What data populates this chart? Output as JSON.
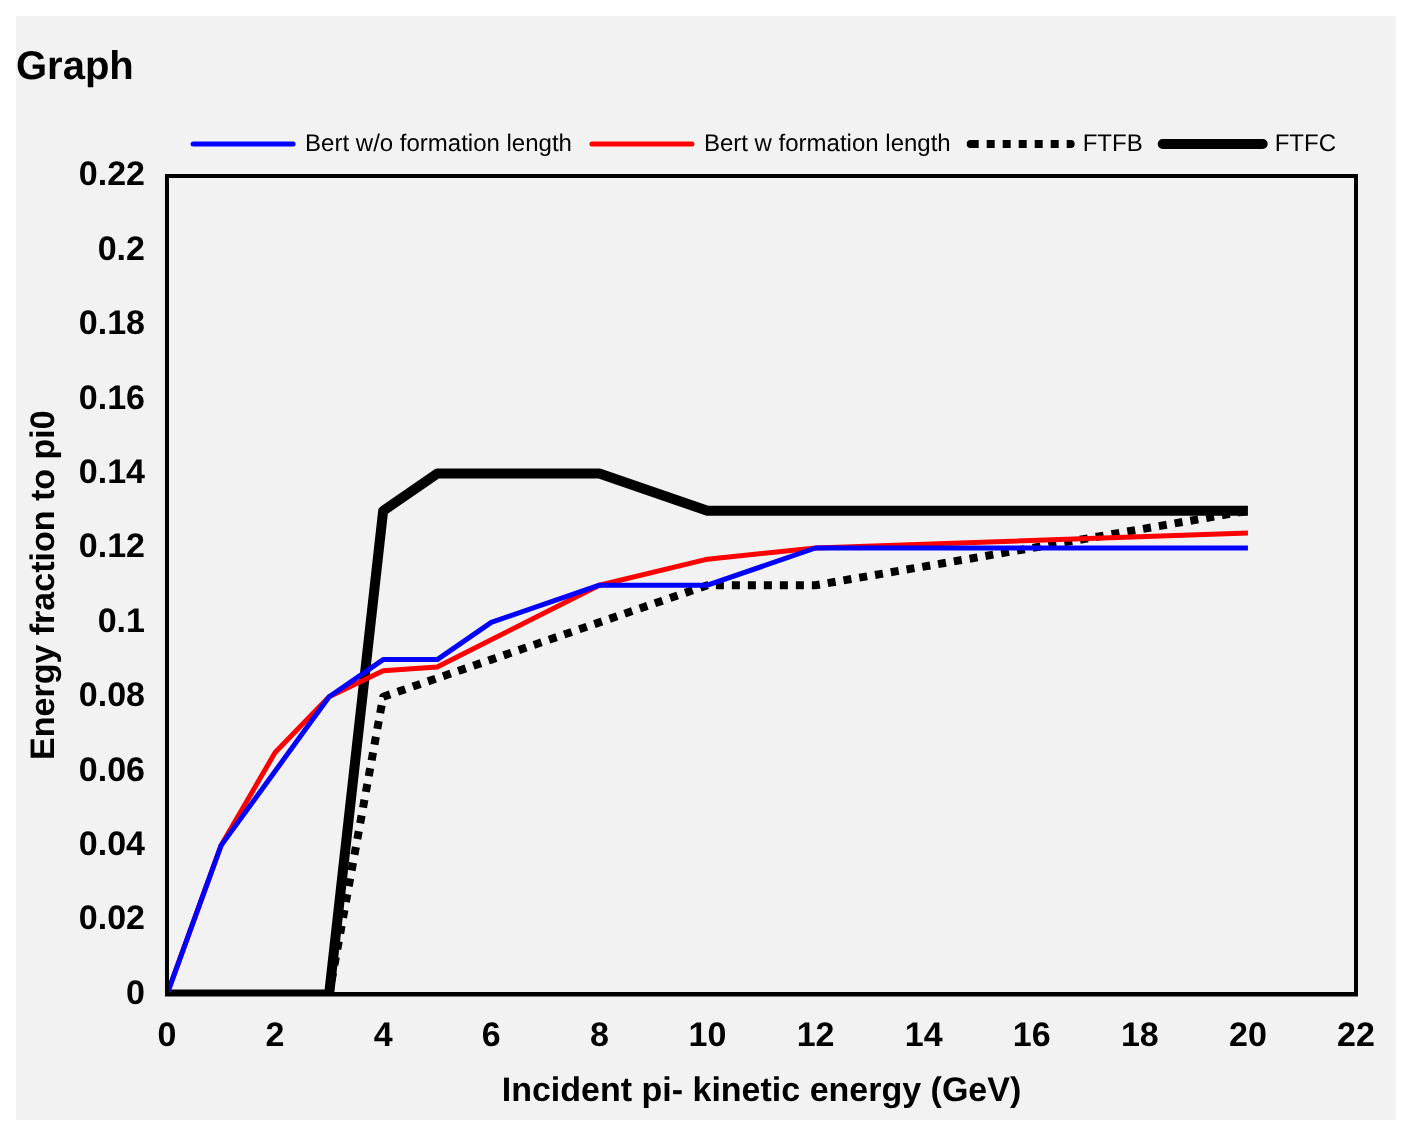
{
  "chart_data": {
    "type": "line",
    "title": "Graph",
    "xlabel": "Incident pi- kinetic energy (GeV)",
    "ylabel": "Energy fraction to pi0",
    "xlim": [
      0,
      22
    ],
    "xticks": [
      0,
      2,
      4,
      6,
      8,
      10,
      12,
      14,
      16,
      18,
      20,
      22
    ],
    "ylim": [
      0,
      0.22
    ],
    "yticks": [
      0,
      0.02,
      0.04,
      0.06,
      0.08,
      0.1,
      0.12,
      0.14,
      0.16,
      0.18,
      0.2,
      0.22
    ],
    "grid": false,
    "legend": "top right",
    "marker": "none",
    "series": [
      {
        "name": "Bert w/o formation length",
        "color": "#0000ff",
        "line_style": "solid",
        "x": [
          0,
          1,
          2,
          3,
          4,
          5,
          6,
          8,
          10,
          12,
          20
        ],
        "values": [
          0,
          0.04,
          0.06,
          0.08,
          0.09,
          0.09,
          0.1,
          0.11,
          0.11,
          0.12,
          0.12
        ]
      },
      {
        "name": "Bert w formation length",
        "color": "#ff0000",
        "line_style": "solid",
        "x": [
          0,
          1,
          2,
          3,
          4,
          5,
          8,
          10,
          12,
          20
        ],
        "values": [
          0,
          0.04,
          0.065,
          0.08,
          0.087,
          0.088,
          0.11,
          0.117,
          0.12,
          0.124
        ]
      },
      {
        "name": "FTFB",
        "color": "#000000",
        "line_style": "dotted",
        "x": [
          0,
          3,
          4,
          6,
          8,
          10,
          12,
          16,
          20
        ],
        "values": [
          0,
          0,
          0.08,
          0.09,
          0.1,
          0.11,
          0.11,
          0.12,
          0.13
        ]
      },
      {
        "name": "FTFC",
        "color": "#000000",
        "line_style": "solid",
        "x": [
          0,
          3,
          4,
          5,
          8,
          10,
          20
        ],
        "values": [
          0,
          0,
          0.13,
          0.14,
          0.14,
          0.13,
          0.13
        ]
      }
    ]
  }
}
